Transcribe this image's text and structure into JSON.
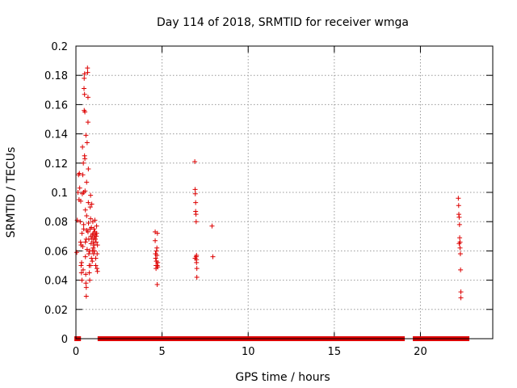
{
  "chart_data": {
    "type": "scatter",
    "title": "Day 114 of 2018, SRMTID for receiver wmga",
    "xlabel": "GPS time / hours",
    "ylabel": "SRMTID / TECUs",
    "xlim": [
      0,
      24.2
    ],
    "ylim": [
      0,
      0.2
    ],
    "xticks": [
      0,
      5,
      10,
      15,
      20
    ],
    "xtick_labels": [
      "0",
      "5",
      "10",
      "15",
      "20"
    ],
    "yticks": [
      0,
      0.02,
      0.04,
      0.06,
      0.08,
      0.1,
      0.12,
      0.14,
      0.16,
      0.18,
      0.2
    ],
    "ytick_labels": [
      "0",
      "0.02",
      "0.04",
      "0.06",
      "0.08",
      "0.1",
      "0.12",
      "0.14",
      "0.16",
      "0.18",
      "0.2"
    ],
    "grid": true,
    "marker": "+",
    "color": "#dd0000",
    "series": [
      {
        "name": "SRMTID",
        "points": [
          [
            0.05,
            0.059
          ],
          [
            0.08,
            0.081
          ],
          [
            0.12,
            0.1
          ],
          [
            0.15,
            0.112
          ],
          [
            0.18,
            0.095
          ],
          [
            0.2,
            0.113
          ],
          [
            0.22,
            0.103
          ],
          [
            0.25,
            0.08
          ],
          [
            0.27,
            0.066
          ],
          [
            0.28,
            0.094
          ],
          [
            0.3,
            0.064
          ],
          [
            0.3,
            0.05
          ],
          [
            0.32,
            0.045
          ],
          [
            0.33,
            0.052
          ],
          [
            0.35,
            0.04
          ],
          [
            0.35,
            0.072
          ],
          [
            0.37,
            0.099
          ],
          [
            0.38,
            0.131
          ],
          [
            0.4,
            0.112
          ],
          [
            0.4,
            0.063
          ],
          [
            0.42,
            0.047
          ],
          [
            0.43,
            0.12
          ],
          [
            0.45,
            0.1
          ],
          [
            0.45,
            0.078
          ],
          [
            0.47,
            0.171
          ],
          [
            0.48,
            0.178
          ],
          [
            0.48,
            0.156
          ],
          [
            0.5,
            0.181
          ],
          [
            0.5,
            0.167
          ],
          [
            0.5,
            0.125
          ],
          [
            0.52,
            0.155
          ],
          [
            0.52,
            0.123
          ],
          [
            0.53,
            0.101
          ],
          [
            0.55,
            0.088
          ],
          [
            0.55,
            0.066
          ],
          [
            0.55,
            0.056
          ],
          [
            0.57,
            0.044
          ],
          [
            0.58,
            0.038
          ],
          [
            0.58,
            0.139
          ],
          [
            0.6,
            0.035
          ],
          [
            0.6,
            0.029
          ],
          [
            0.62,
            0.107
          ],
          [
            0.62,
            0.084
          ],
          [
            0.63,
            0.074
          ],
          [
            0.65,
            0.061
          ],
          [
            0.65,
            0.134
          ],
          [
            0.67,
            0.185
          ],
          [
            0.68,
            0.182
          ],
          [
            0.7,
            0.165
          ],
          [
            0.7,
            0.148
          ],
          [
            0.72,
            0.116
          ],
          [
            0.72,
            0.093
          ],
          [
            0.73,
            0.079
          ],
          [
            0.75,
            0.068
          ],
          [
            0.75,
            0.058
          ],
          [
            0.77,
            0.05
          ],
          [
            0.78,
            0.045
          ],
          [
            0.8,
            0.04
          ],
          [
            0.8,
            0.06
          ],
          [
            0.82,
            0.075
          ],
          [
            0.83,
            0.09
          ],
          [
            0.85,
            0.098
          ],
          [
            0.85,
            0.082
          ],
          [
            0.87,
            0.07
          ],
          [
            0.88,
            0.065
          ],
          [
            0.9,
            0.055
          ],
          [
            0.9,
            0.076
          ],
          [
            0.92,
            0.092
          ],
          [
            0.93,
            0.068
          ],
          [
            0.95,
            0.06
          ],
          [
            0.95,
            0.053
          ],
          [
            0.97,
            0.071
          ],
          [
            0.98,
            0.08
          ],
          [
            1.0,
            0.062
          ],
          [
            1.0,
            0.072
          ],
          [
            1.02,
            0.066
          ],
          [
            1.03,
            0.058
          ],
          [
            1.05,
            0.075
          ],
          [
            1.05,
            0.069
          ],
          [
            1.07,
            0.064
          ],
          [
            1.08,
            0.06
          ],
          [
            1.1,
            0.073
          ],
          [
            1.1,
            0.081
          ],
          [
            1.12,
            0.071
          ],
          [
            1.13,
            0.068
          ],
          [
            1.15,
            0.055
          ],
          [
            1.15,
            0.05
          ],
          [
            1.17,
            0.066
          ],
          [
            1.18,
            0.07
          ],
          [
            1.2,
            0.077
          ],
          [
            1.2,
            0.072
          ],
          [
            1.22,
            0.048
          ],
          [
            1.23,
            0.058
          ],
          [
            1.25,
            0.064
          ],
          [
            1.25,
            0.046
          ],
          [
            0.45,
            0.075
          ],
          [
            0.6,
            0.068
          ],
          [
            0.7,
            0.073
          ],
          [
            0.85,
            0.05
          ],
          [
            4.6,
            0.073
          ],
          [
            4.6,
            0.067
          ],
          [
            4.62,
            0.058
          ],
          [
            4.63,
            0.055
          ],
          [
            4.65,
            0.05
          ],
          [
            4.65,
            0.048
          ],
          [
            4.67,
            0.053
          ],
          [
            4.68,
            0.06
          ],
          [
            4.7,
            0.062
          ],
          [
            4.7,
            0.057
          ],
          [
            4.72,
            0.05
          ],
          [
            4.72,
            0.037
          ],
          [
            4.73,
            0.072
          ],
          [
            4.75,
            0.052
          ],
          [
            4.75,
            0.049
          ],
          [
            6.9,
            0.121
          ],
          [
            6.92,
            0.102
          ],
          [
            6.93,
            0.099
          ],
          [
            6.95,
            0.093
          ],
          [
            6.95,
            0.087
          ],
          [
            6.97,
            0.085
          ],
          [
            6.98,
            0.08
          ],
          [
            6.98,
            0.056
          ],
          [
            7.0,
            0.054
          ],
          [
            7.0,
            0.052
          ],
          [
            7.02,
            0.048
          ],
          [
            7.02,
            0.042
          ],
          [
            7.0,
            0.057
          ],
          [
            6.92,
            0.055
          ],
          [
            7.9,
            0.077
          ],
          [
            7.95,
            0.056
          ],
          [
            22.2,
            0.096
          ],
          [
            22.22,
            0.091
          ],
          [
            22.23,
            0.085
          ],
          [
            22.25,
            0.083
          ],
          [
            22.27,
            0.078
          ],
          [
            22.28,
            0.069
          ],
          [
            22.3,
            0.066
          ],
          [
            22.3,
            0.062
          ],
          [
            22.32,
            0.058
          ],
          [
            22.33,
            0.047
          ],
          [
            22.35,
            0.032
          ],
          [
            22.35,
            0.028
          ],
          [
            22.25,
            0.065
          ]
        ],
        "zero_segments": [
          [
            0.05,
            0.15
          ],
          [
            1.4,
            4.65
          ],
          [
            4.85,
            6.85
          ],
          [
            7.1,
            18.95
          ],
          [
            19.7,
            22.1
          ],
          [
            22.25,
            22.7
          ]
        ]
      }
    ]
  }
}
